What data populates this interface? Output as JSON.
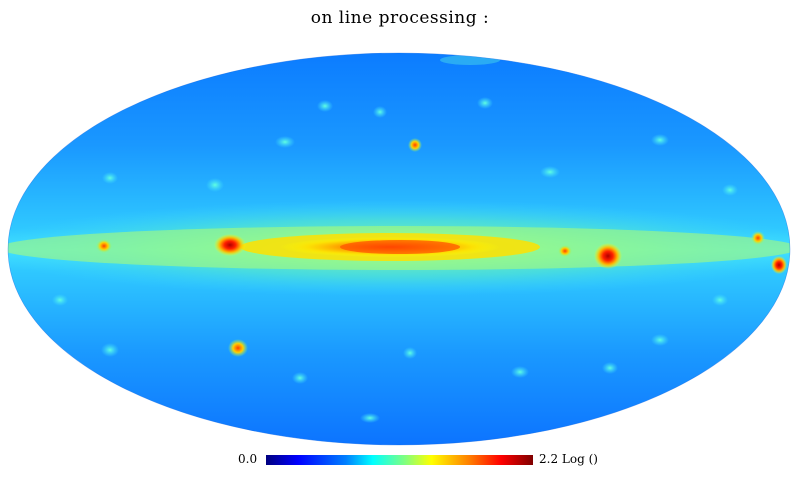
{
  "title": "on line processing :",
  "colorbar": {
    "min_label": "0.0",
    "max_label": "2.2 Log ()",
    "colors": [
      "#00007f",
      "#0000ff",
      "#0080ff",
      "#00ffff",
      "#80ff80",
      "#ffff00",
      "#ff8000",
      "#ff0000",
      "#7f0000"
    ]
  },
  "map": {
    "projection": "Mollweide",
    "background_color": "#1e8fff",
    "plane_color": "#ffe000",
    "hotspot_color": "#d00000"
  }
}
